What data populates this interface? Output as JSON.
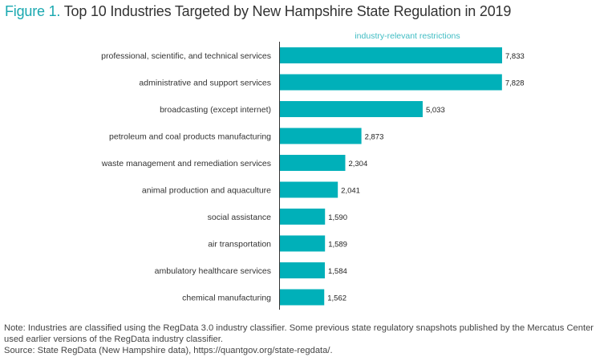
{
  "title": {
    "figure_label": "Figure 1.",
    "text": "Top 10 Industries Targeted by New Hampshire State Regulation in 2019"
  },
  "chart_data": {
    "type": "bar",
    "orientation": "horizontal",
    "title": "Top 10 Industries Targeted by New Hampshire State Regulation in 2019",
    "series_label": "industry-relevant restrictions",
    "categories": [
      "professional, scientific, and technical services",
      "administrative and support services",
      "broadcasting (except internet)",
      "petroleum and coal products manufacturing",
      "waste management and remediation services",
      "animal production and aquaculture",
      "social assistance",
      "air transportation",
      "ambulatory healthcare services",
      "chemical manufacturing"
    ],
    "values": [
      7833,
      7828,
      5033,
      2873,
      2304,
      2041,
      1590,
      1589,
      1584,
      1562
    ],
    "value_labels": [
      "7,833",
      "7,828",
      "5,033",
      "2,873",
      "2,304",
      "2,041",
      "1,590",
      "1,589",
      "1,584",
      "1,562"
    ],
    "xlim": [
      0,
      7833
    ],
    "grid": false,
    "bar_color": "#00b0b9"
  },
  "notes": {
    "note": "Note: Industries are classified using the RegData 3.0 industry classifier. Some previous state regulatory snapshots published by the Mercatus Center used earlier versions of the RegData industry classifier.",
    "source": "Source: State RegData (New Hampshire data), https://quantgov.org/state-regdata/."
  }
}
